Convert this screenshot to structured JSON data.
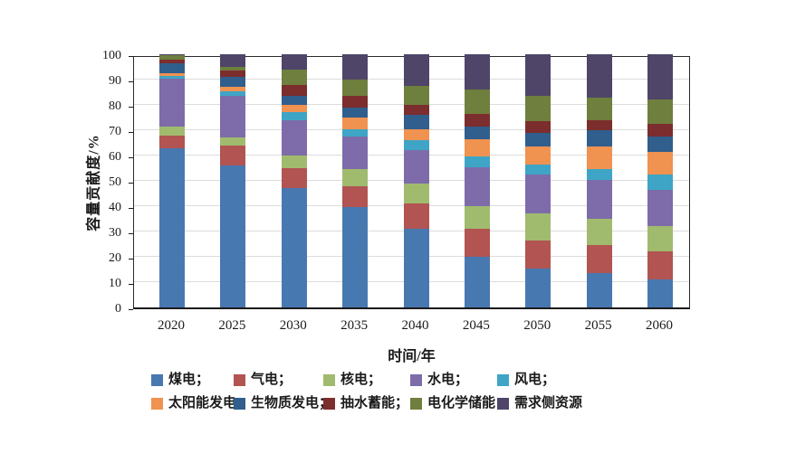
{
  "axes": {
    "y_title": "容量贡献度/%",
    "x_title": "时间/年"
  },
  "chart_data": {
    "type": "bar",
    "stacked": true,
    "orientation": "vertical",
    "xlabel": "时间/年",
    "ylabel": "容量贡献度/%",
    "ylim": [
      0,
      100
    ],
    "y_ticks": [
      0,
      10,
      20,
      30,
      40,
      50,
      60,
      70,
      80,
      90,
      100
    ],
    "grid": "horizontal-light",
    "legend_position": "below",
    "categories": [
      "2020",
      "2025",
      "2030",
      "2035",
      "2040",
      "2045",
      "2050",
      "2055",
      "2060"
    ],
    "series": [
      {
        "name": "煤电",
        "color": "#4878b0",
        "values": [
          63,
          56,
          47,
          39.5,
          31,
          20,
          15.5,
          13.5,
          11
        ]
      },
      {
        "name": "气电",
        "color": "#b15452",
        "values": [
          5,
          8,
          8,
          8.5,
          10,
          11,
          11,
          11,
          11
        ]
      },
      {
        "name": "核电",
        "color": "#a0bb6e",
        "values": [
          3.5,
          3,
          5,
          6.5,
          8,
          9,
          10.5,
          10.5,
          10
        ]
      },
      {
        "name": "水电",
        "color": "#7d6ca9",
        "values": [
          19,
          16.5,
          14,
          13,
          13,
          15.5,
          15.5,
          15.5,
          14.5
        ]
      },
      {
        "name": "风电",
        "color": "#3ea5c6",
        "values": [
          1,
          2,
          3,
          3,
          4,
          4,
          4,
          4,
          6
        ]
      },
      {
        "name": "太阳能发电",
        "color": "#f09250",
        "values": [
          1,
          1.5,
          3,
          4.5,
          4.5,
          7,
          7,
          9,
          9
        ]
      },
      {
        "name": "生物质发电",
        "color": "#305e8d",
        "values": [
          4,
          4,
          3.5,
          4,
          5.5,
          5,
          5.5,
          6.5,
          6
        ]
      },
      {
        "name": "抽水蓄能",
        "color": "#7c2d2d",
        "values": [
          1.5,
          2.5,
          4.5,
          4.5,
          4,
          5,
          4.5,
          4,
          5
        ]
      },
      {
        "name": "电化学储能",
        "color": "#6e7f3e",
        "values": [
          1.5,
          1.5,
          6,
          6.5,
          7.5,
          9.5,
          10,
          9,
          9.5
        ]
      },
      {
        "name": "需求侧资源",
        "color": "#4e4569",
        "values": [
          0.5,
          5,
          6,
          10,
          12.5,
          14,
          16.5,
          17,
          18
        ]
      }
    ],
    "legend_labels": [
      "煤电；",
      "气电；",
      "核电；",
      "水电；",
      "风电；",
      "太阳能发电；",
      "生物质发电；",
      "抽水蓄能；",
      "电化学储能；",
      "需求侧资源"
    ]
  }
}
